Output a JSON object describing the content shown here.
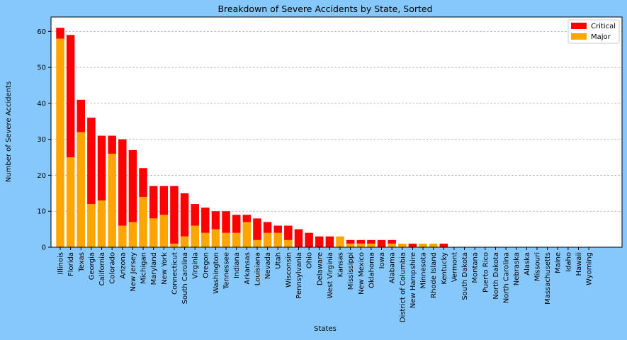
{
  "chart_data": {
    "type": "bar",
    "stacked": true,
    "title": "Breakdown of Severe Accidents by State, Sorted",
    "xlabel": "States",
    "ylabel": "Number of Severe Accidents",
    "ylim": [
      0,
      64
    ],
    "yticks": [
      0,
      10,
      20,
      30,
      40,
      50,
      60
    ],
    "grid": "y-dashed",
    "legend": "top-right",
    "colors": {
      "figure_bg": "#87c8fc",
      "plot_bg": "#ffffff",
      "grid": "#b0b0b0"
    },
    "categories": [
      "Illinois",
      "Florida",
      "Texas",
      "Georgia",
      "California",
      "Colorado",
      "Arizona",
      "New Jersey",
      "Michigan",
      "Maryland",
      "New York",
      "Connecticut",
      "South Carolina",
      "Virginia",
      "Oregon",
      "Washington",
      "Tennessee",
      "Indiana",
      "Arkansas",
      "Louisiana",
      "Nevada",
      "Utah",
      "Wisconsin",
      "Pennsylvania",
      "Ohio",
      "Delaware",
      "West Virginia",
      "Kansas",
      "Mississippi",
      "New Mexico",
      "Oklahoma",
      "Iowa",
      "Alabama",
      "District of Columbia",
      "New Hampshire",
      "Minnesota",
      "Rhode Island",
      "Kentucky",
      "Vermont",
      "South Dakota",
      "Montana",
      "Puerto Rico",
      "North Dakota",
      "North Carolina",
      "Nebraska",
      "Alaska",
      "Missouri",
      "Massachusetts",
      "Maine",
      "Idaho",
      "Hawaii",
      "Wyoming"
    ],
    "series": [
      {
        "name": "Major",
        "color": "#ffa500",
        "values": [
          58,
          25,
          32,
          12,
          13,
          26,
          6,
          7,
          14,
          8,
          9,
          1,
          3,
          6,
          4,
          5,
          4,
          4,
          7,
          2,
          4,
          4,
          2,
          0,
          0,
          0,
          0,
          3,
          1,
          1,
          1,
          0,
          1,
          1,
          0,
          1,
          1,
          0,
          0,
          0,
          0,
          0,
          0,
          0,
          0,
          0,
          0,
          0,
          0,
          0,
          0,
          0
        ]
      },
      {
        "name": "Critical",
        "color": "#ff0000",
        "values": [
          3,
          34,
          9,
          24,
          18,
          5,
          24,
          20,
          8,
          9,
          8,
          16,
          12,
          6,
          7,
          5,
          6,
          5,
          2,
          6,
          3,
          2,
          4,
          5,
          4,
          3,
          3,
          0,
          1,
          1,
          1,
          2,
          1,
          0,
          1,
          0,
          0,
          1,
          0,
          0,
          0,
          0,
          0,
          0,
          0,
          0,
          0,
          0,
          0,
          0,
          0,
          0
        ]
      }
    ],
    "legend_order": [
      "Critical",
      "Major"
    ]
  }
}
